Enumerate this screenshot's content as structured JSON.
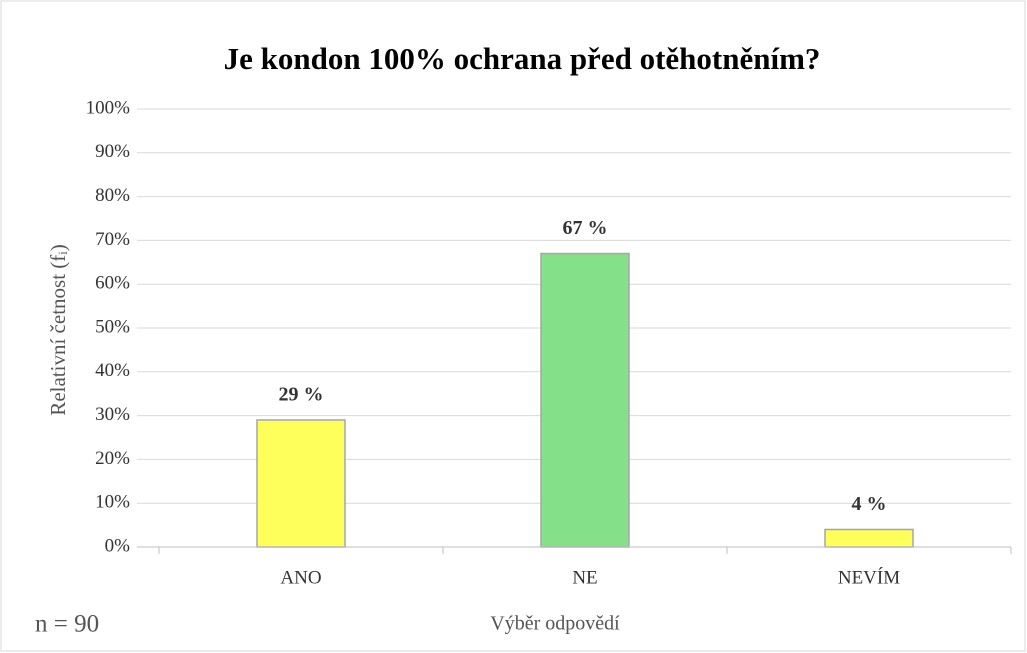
{
  "chart_data": {
    "type": "bar",
    "title": "Je kondon 100% ochrana před otěhotněním?",
    "x_label": "Výběr odpovědí",
    "y_label": "Relativní četnost (fᵢ)",
    "annotation": "n = 90",
    "categories": [
      "ANO",
      "NE",
      "NEVÍM"
    ],
    "values": [
      29,
      67,
      4
    ],
    "value_labels": [
      "29 %",
      "67 %",
      "4 %"
    ],
    "colors": [
      "#ffff5c",
      "#85e08a",
      "#ffff5c"
    ],
    "ylim": [
      0,
      100
    ],
    "yticks": [
      {
        "value": 0,
        "label": "0%"
      },
      {
        "value": 10,
        "label": "10%"
      },
      {
        "value": 20,
        "label": "20%"
      },
      {
        "value": 30,
        "label": "30%"
      },
      {
        "value": 40,
        "label": "40%"
      },
      {
        "value": 50,
        "label": "50%"
      },
      {
        "value": 60,
        "label": "60%"
      },
      {
        "value": 70,
        "label": "70%"
      },
      {
        "value": 80,
        "label": "80%"
      },
      {
        "value": 90,
        "label": "90%"
      },
      {
        "value": 100,
        "label": "100%"
      }
    ],
    "grid": true
  }
}
